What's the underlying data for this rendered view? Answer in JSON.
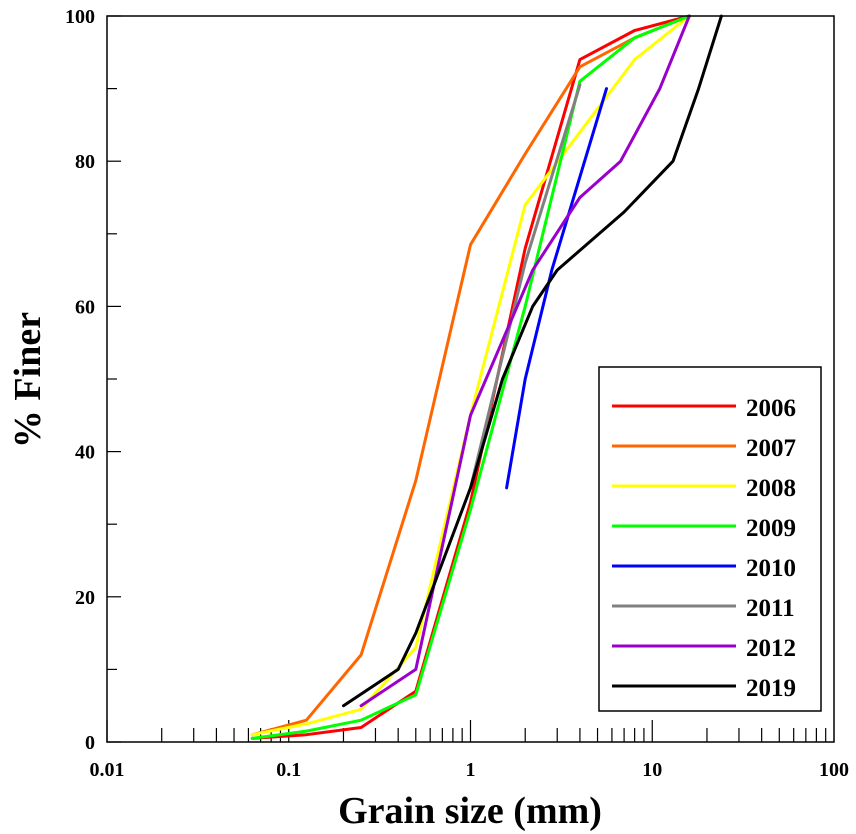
{
  "chart_data": {
    "type": "line",
    "x_scale": "log",
    "xlabel": "Grain size (mm)",
    "ylabel": "% Finer",
    "xlim": [
      0.01,
      100
    ],
    "ylim": [
      0,
      100
    ],
    "x_ticks": [
      "0.01",
      "0.1",
      "1",
      "10",
      "100"
    ],
    "y_ticks": [
      "0",
      "20",
      "40",
      "60",
      "80",
      "100"
    ],
    "legend_position": "bottom-right",
    "series": [
      {
        "name": "2006",
        "color": "#ff0000",
        "points": [
          [
            0.063,
            0.5
          ],
          [
            0.125,
            1
          ],
          [
            0.25,
            2
          ],
          [
            0.5,
            7
          ],
          [
            1,
            33
          ],
          [
            2,
            68
          ],
          [
            4,
            94
          ],
          [
            8,
            98
          ],
          [
            16,
            100
          ]
        ]
      },
      {
        "name": "2007",
        "color": "#ff6600",
        "points": [
          [
            0.063,
            1
          ],
          [
            0.125,
            3
          ],
          [
            0.25,
            12
          ],
          [
            0.5,
            36
          ],
          [
            1,
            68.5
          ],
          [
            2,
            81
          ],
          [
            4,
            93
          ],
          [
            8,
            97
          ],
          [
            16,
            100
          ]
        ]
      },
      {
        "name": "2008",
        "color": "#ffff00",
        "points": [
          [
            0.063,
            1
          ],
          [
            0.125,
            2.5
          ],
          [
            0.25,
            4.5
          ],
          [
            0.5,
            13
          ],
          [
            1,
            45
          ],
          [
            2,
            74
          ],
          [
            4,
            84
          ],
          [
            8,
            94
          ],
          [
            16,
            100
          ]
        ]
      },
      {
        "name": "2009",
        "color": "#00ff00",
        "points": [
          [
            0.063,
            0.5
          ],
          [
            0.125,
            1.5
          ],
          [
            0.25,
            3
          ],
          [
            0.5,
            6.5
          ],
          [
            1,
            32
          ],
          [
            2,
            60
          ],
          [
            4,
            91
          ],
          [
            8,
            97
          ],
          [
            16,
            100
          ]
        ]
      },
      {
        "name": "2010",
        "color": "#0000ff",
        "points": [
          [
            1.58,
            35
          ],
          [
            2,
            50
          ],
          [
            2.8,
            65
          ],
          [
            5.6,
            90
          ]
        ]
      },
      {
        "name": "2011",
        "color": "#808080",
        "points": [
          [
            1,
            35
          ],
          [
            2,
            66
          ],
          [
            4,
            90.5
          ]
        ]
      },
      {
        "name": "2012",
        "color": "#9900cc",
        "points": [
          [
            0.25,
            5
          ],
          [
            0.5,
            10
          ],
          [
            1,
            45
          ],
          [
            2.2,
            65
          ],
          [
            4,
            75
          ],
          [
            6.7,
            80
          ],
          [
            11,
            90
          ],
          [
            16,
            100
          ]
        ]
      },
      {
        "name": "2019",
        "color": "#000000",
        "points": [
          [
            0.2,
            5
          ],
          [
            0.4,
            10
          ],
          [
            0.5,
            15
          ],
          [
            1,
            35
          ],
          [
            1.5,
            50
          ],
          [
            2.2,
            60
          ],
          [
            3,
            65
          ],
          [
            7,
            73
          ],
          [
            13,
            80
          ],
          [
            18,
            90
          ],
          [
            24,
            100
          ]
        ]
      }
    ]
  }
}
